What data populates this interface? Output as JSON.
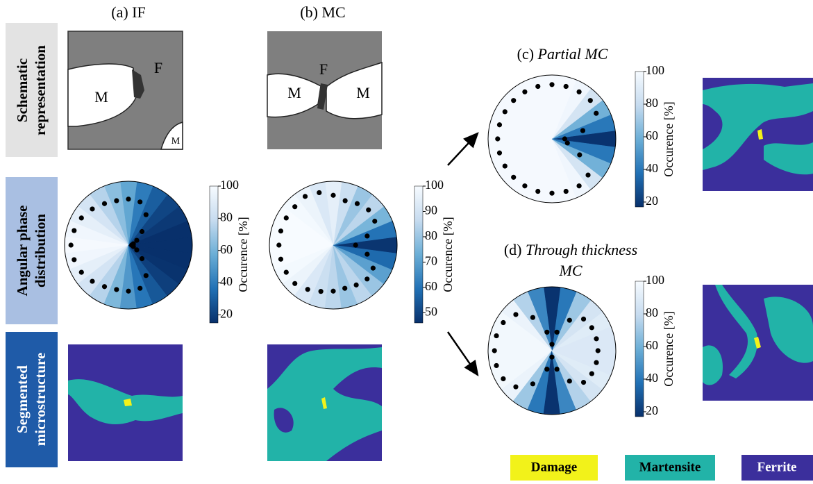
{
  "row_labels": [
    {
      "lines": [
        "Schematic",
        "representation"
      ]
    },
    {
      "lines": [
        "Angular phase",
        "distribution"
      ]
    },
    {
      "lines": [
        "Segmented",
        "microstructure"
      ]
    }
  ],
  "panels": [
    {
      "title": "(a) IF",
      "schematic_labels": [
        "M",
        "F",
        "M"
      ]
    },
    {
      "title": "(b) MC",
      "schematic_labels": [
        "F",
        "M",
        "M"
      ]
    }
  ],
  "theta": [
    0,
    15,
    30,
    45,
    60,
    75,
    90,
    105,
    120,
    135,
    150,
    165,
    180,
    195,
    210,
    225,
    240,
    255,
    270,
    285,
    300,
    315,
    330,
    345
  ],
  "polar_plots": [
    {
      "colorbar": {
        "label": "Occurence [%]",
        "lim": [
          15,
          100
        ],
        "ticks": [
          20,
          40,
          60,
          80,
          100
        ]
      },
      "sectors": [
        15,
        15,
        18,
        22,
        30,
        40,
        55,
        65,
        75,
        85,
        92,
        97,
        99,
        97,
        92,
        85,
        75,
        62,
        50,
        38,
        28,
        20,
        16,
        15
      ],
      "dot_radii": [
        0.05,
        0.08,
        0.15,
        0.3,
        0.55,
        0.7,
        0.72,
        0.72,
        0.75,
        0.8,
        0.85,
        0.88,
        0.9,
        0.88,
        0.85,
        0.8,
        0.75,
        0.72,
        0.72,
        0.7,
        0.55,
        0.3,
        0.15,
        0.08
      ]
    },
    {
      "colorbar": {
        "label": "Occurence [%]",
        "lim": [
          46,
          100
        ],
        "ticks": [
          50,
          60,
          70,
          80,
          90,
          100
        ]
      },
      "sectors": [
        47,
        60,
        75,
        85,
        80,
        88,
        95,
        92,
        97,
        99,
        100,
        100,
        100,
        100,
        99,
        97,
        92,
        88,
        85,
        80,
        85,
        80,
        70,
        58
      ],
      "dot_radii": [
        0.35,
        0.55,
        0.75,
        0.78,
        0.75,
        0.72,
        0.78,
        0.85,
        0.88,
        0.85,
        0.85,
        0.85,
        0.85,
        0.85,
        0.85,
        0.85,
        0.8,
        0.75,
        0.72,
        0.7,
        0.72,
        0.75,
        0.72,
        0.55
      ]
    },
    {
      "label": "(c)",
      "name": [
        "Partial MC"
      ],
      "colorbar": {
        "label": "Occurence [%]",
        "lim": [
          17,
          100
        ],
        "ticks": [
          20,
          40,
          60,
          80,
          100
        ]
      },
      "sectors": [
        18,
        40,
        60,
        85,
        97,
        99,
        99,
        99,
        99,
        99,
        99,
        99,
        99,
        99,
        99,
        99,
        99,
        99,
        99,
        99,
        97,
        85,
        60,
        40
      ],
      "dot_radii": [
        0.2,
        0.5,
        0.8,
        0.85,
        0.85,
        0.85,
        0.85,
        0.85,
        0.85,
        0.85,
        0.85,
        0.85,
        0.85,
        0.85,
        0.85,
        0.85,
        0.85,
        0.85,
        0.85,
        0.85,
        0.85,
        0.8,
        0.5,
        0.25
      ]
    },
    {
      "label": "(d)",
      "name": [
        "Through thickness",
        "MC"
      ],
      "colorbar": {
        "label": "Occurence [%]",
        "lim": [
          17,
          100
        ],
        "ticks": [
          20,
          40,
          60,
          80,
          100
        ]
      },
      "sectors": [
        88,
        88,
        90,
        85,
        70,
        40,
        18,
        45,
        75,
        95,
        98,
        98,
        98,
        98,
        98,
        95,
        70,
        40,
        18,
        45,
        75,
        85,
        90,
        88
      ],
      "dot_radii": [
        0.72,
        0.72,
        0.72,
        0.7,
        0.55,
        0.3,
        0.1,
        0.3,
        0.6,
        0.8,
        0.88,
        0.9,
        0.9,
        0.9,
        0.88,
        0.8,
        0.6,
        0.3,
        0.1,
        0.3,
        0.55,
        0.7,
        0.72,
        0.72
      ]
    }
  ],
  "legend": [
    "Damage",
    "Martensite",
    "Ferrite"
  ]
}
